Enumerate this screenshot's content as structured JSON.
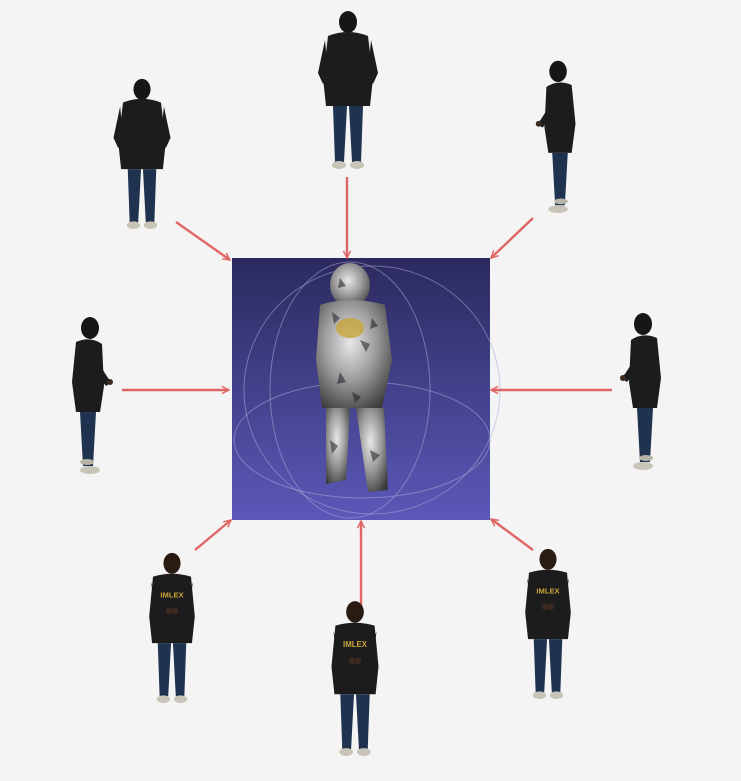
{
  "diagram": {
    "center_panel": {
      "name": "reconstructed-3d-mesh",
      "background_top": "#2b2a5e",
      "background_bottom": "#5b58b8"
    },
    "arrow_color": "#e06666",
    "views": [
      {
        "name": "view-top",
        "facing": "back",
        "shirt_text": ""
      },
      {
        "name": "view-top-right",
        "facing": "back-right",
        "shirt_text": ""
      },
      {
        "name": "view-right",
        "facing": "right",
        "shirt_text": ""
      },
      {
        "name": "view-bottom-right",
        "facing": "front-right",
        "shirt_text": "IMLEX"
      },
      {
        "name": "view-bottom",
        "facing": "front",
        "shirt_text": "IMLEX"
      },
      {
        "name": "view-bottom-left",
        "facing": "front-left",
        "shirt_text": "IMLEX"
      },
      {
        "name": "view-left",
        "facing": "left",
        "shirt_text": ""
      },
      {
        "name": "view-top-left",
        "facing": "back-left",
        "shirt_text": ""
      }
    ]
  }
}
